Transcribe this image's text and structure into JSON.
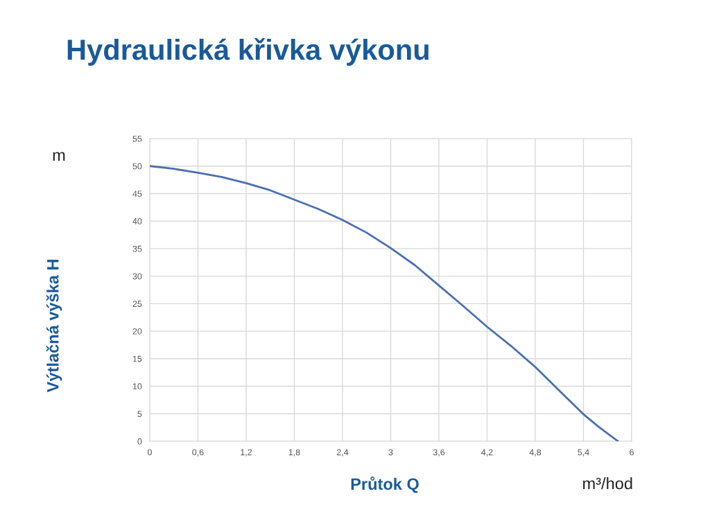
{
  "chart_data": {
    "type": "line",
    "title": "Hydraulická křivka výkonu",
    "xlabel": "Průtok Q",
    "ylabel": "Výtlačná výška H",
    "annotations": [
      "m",
      "m³/hod"
    ],
    "series": [
      {
        "color": "#4a6fb0",
        "x": [
          0,
          0.3,
          0.6,
          0.9,
          1.2,
          1.5,
          1.8,
          2.1,
          2.4,
          2.7,
          3,
          3.3,
          3.6,
          3.9,
          4.2,
          4.5,
          4.8,
          5.1,
          5.4,
          5.6,
          5.83
        ],
        "values": [
          50,
          49.5,
          48.8,
          48,
          46.9,
          45.6,
          43.9,
          42.2,
          40.2,
          37.9,
          35.1,
          32,
          28.3,
          24.6,
          20.8,
          17.3,
          13.5,
          9.2,
          4.9,
          2.5,
          0
        ]
      }
    ],
    "xlim": [
      0,
      6
    ],
    "ylim": [
      0,
      55
    ],
    "xticks": [
      0,
      {
        "value": 0.6,
        "label": "0,6"
      },
      {
        "value": 1.2,
        "label": "1,2"
      },
      {
        "value": 1.8,
        "label": "1,8"
      },
      {
        "value": 2.4,
        "label": "2,4"
      },
      3,
      {
        "value": 3.6,
        "label": "3,6"
      },
      {
        "value": 4.2,
        "label": "4,2"
      },
      {
        "value": 4.8,
        "label": "4,8"
      },
      {
        "value": 5.4,
        "label": "5,4"
      },
      6
    ],
    "yticks": [
      0,
      5,
      10,
      15,
      20,
      25,
      30,
      35,
      40,
      45,
      50,
      55
    ],
    "grid": true,
    "legend": false,
    "marker": "none",
    "line_style": "solid"
  }
}
